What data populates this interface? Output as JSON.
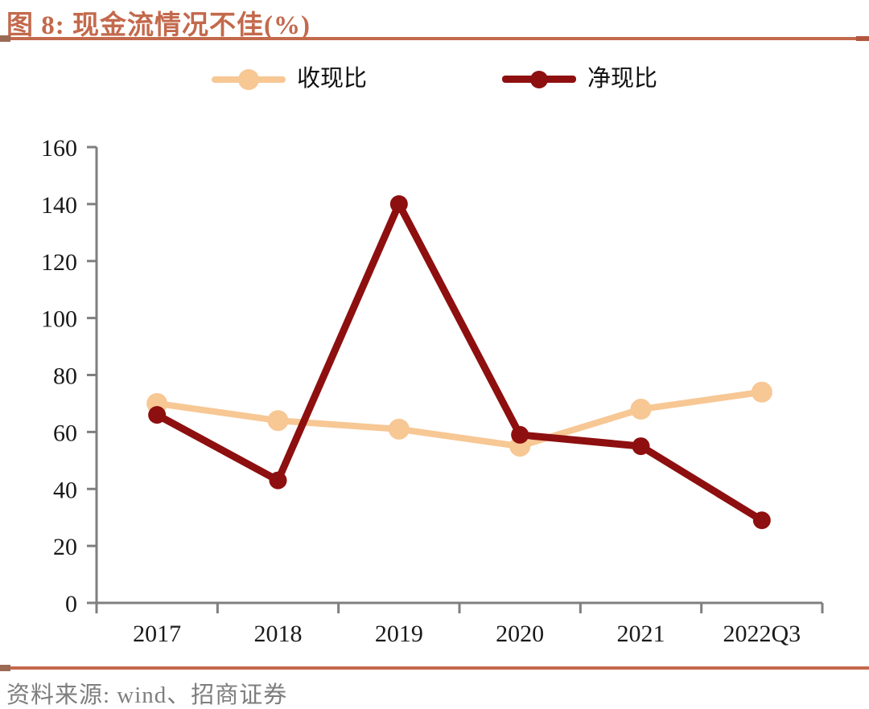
{
  "header": {
    "title": "图 8: 现金流情况不佳(%)"
  },
  "footer": {
    "source": "资料来源: wind、招商证券"
  },
  "accent_color": "#C3694C",
  "chart_data": {
    "type": "line",
    "title": "现金流情况不佳(%)",
    "categories": [
      "2017",
      "2018",
      "2019",
      "2020",
      "2021",
      "2022Q3"
    ],
    "series": [
      {
        "name": "收现比",
        "color": "#F7C794",
        "line_width": 8,
        "marker_radius": 13,
        "values": [
          70,
          64,
          61,
          55,
          68,
          74
        ]
      },
      {
        "name": "净现比",
        "color": "#8E0F0F",
        "line_width": 9,
        "marker_radius": 11,
        "values": [
          66,
          43,
          140,
          59,
          55,
          29
        ]
      }
    ],
    "xlabel": "",
    "ylabel": "",
    "ylim": [
      0,
      160
    ],
    "ytick_step": 20,
    "yticks": [
      0,
      20,
      40,
      60,
      80,
      100,
      120,
      140,
      160
    ],
    "grid": false,
    "legend_position": "top-center",
    "axis_color": "#7F7F7F",
    "tick_label_color": "#1a1a1a"
  }
}
